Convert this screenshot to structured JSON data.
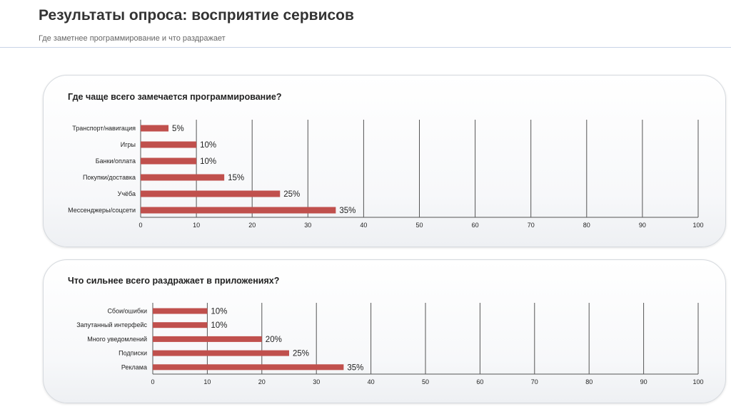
{
  "page": {
    "title": "Результаты опроса: восприятие сервисов",
    "subtitle": "Где заметнее программирование и что раздражает"
  },
  "colors": {
    "bar": "#c0504d",
    "grid": "#555555",
    "panel_border": "#d5d9de"
  },
  "chart_data": [
    {
      "type": "bar",
      "orientation": "horizontal",
      "title": "Где чаще всего замечается программирование?",
      "categories": [
        "Транспорт/навигация",
        "Игры",
        "Банки/оплата",
        "Покупки/доставка",
        "Учёба",
        "Мессенджеры/соцсети"
      ],
      "values": [
        5,
        10,
        10,
        15,
        25,
        35
      ],
      "data_labels": [
        "5%",
        "10%",
        "10%",
        "15%",
        "25%",
        "35%"
      ],
      "xlim": [
        0,
        100
      ],
      "xticks": [
        0,
        10,
        20,
        30,
        40,
        50,
        60,
        70,
        80,
        90,
        100
      ],
      "grid": true,
      "legend": "none"
    },
    {
      "type": "bar",
      "orientation": "horizontal",
      "title": "Что сильнее всего раздражает в приложениях?",
      "categories": [
        "Сбои/ошибки",
        "Запутанный интерфейс",
        "Много уведомлений",
        "Подписки",
        "Реклама"
      ],
      "values": [
        10,
        10,
        20,
        25,
        35
      ],
      "data_labels": [
        "10%",
        "10%",
        "20%",
        "25%",
        "35%"
      ],
      "xlim": [
        0,
        100
      ],
      "xticks": [
        0,
        10,
        20,
        30,
        40,
        50,
        60,
        70,
        80,
        90,
        100
      ],
      "grid": true,
      "legend": "none"
    }
  ]
}
